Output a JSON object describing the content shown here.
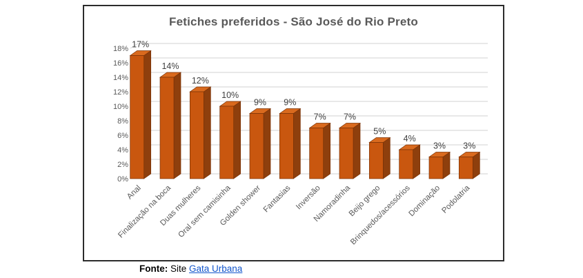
{
  "title": "Fetiches preferidos - São José do Rio Preto",
  "chart_data": {
    "type": "bar",
    "style": "3d-column",
    "title": "Fetiches preferidos - São José do Rio Preto",
    "categories": [
      "Anal",
      "Finalização na boca",
      "Duas mulheres",
      "Oral sem camisinha",
      "Golden shower",
      "Fantasias",
      "Inversão",
      "Namoradinha",
      "Beijo grego",
      "Brinquedos/acessórios",
      "Dominação",
      "Podolatria"
    ],
    "values": [
      17,
      14,
      12,
      10,
      9,
      9,
      7,
      7,
      5,
      4,
      3,
      3
    ],
    "value_labels": [
      "17%",
      "14%",
      "12%",
      "10%",
      "9%",
      "9%",
      "7%",
      "7%",
      "5%",
      "4%",
      "3%",
      "3%"
    ],
    "xlabel": "",
    "ylabel": "",
    "ylim": [
      0,
      18
    ],
    "ytick_step": 2,
    "ytick_labels": [
      "0%",
      "2%",
      "4%",
      "6%",
      "8%",
      "10%",
      "12%",
      "14%",
      "16%",
      "18%"
    ],
    "grid": true,
    "legend": false
  },
  "footer": {
    "prefix": "Fonte:",
    "middle": " Site ",
    "link": "Gata Urbana"
  },
  "colors": {
    "bar_front": "#C9570F",
    "bar_side": "#8E3F0D",
    "bar_top": "#D96A1E",
    "bar_edge": "#7A3206",
    "gridline": "#D9D9D9",
    "title_text": "#595959",
    "tick_text": "#595959",
    "value_text": "#404040",
    "category_text": "#595959",
    "link": "#1155CC",
    "frame_border": "#2B2B2B"
  }
}
